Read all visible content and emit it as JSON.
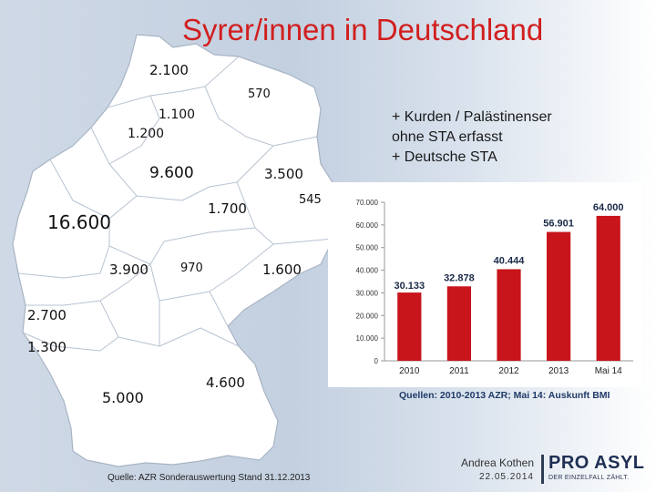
{
  "title": "Syrer/innen in Deutschland",
  "map": {
    "regions": [
      {
        "id": "schleswig-holstein",
        "value": "2.100"
      },
      {
        "id": "mecklenburg-vorpommern",
        "value": "570"
      },
      {
        "id": "hamburg",
        "value": "1.100"
      },
      {
        "id": "bremen",
        "value": "1.200"
      },
      {
        "id": "niedersachsen",
        "value": "9.600"
      },
      {
        "id": "berlin",
        "value": "3.500"
      },
      {
        "id": "brandenburg",
        "value": "545"
      },
      {
        "id": "sachsen-anhalt",
        "value": "1.700"
      },
      {
        "id": "nordrhein-westfalen",
        "value": "16.600"
      },
      {
        "id": "hessen",
        "value": "3.900"
      },
      {
        "id": "thueringen",
        "value": "970"
      },
      {
        "id": "sachsen",
        "value": "1.600"
      },
      {
        "id": "rheinland-pfalz",
        "value": "2.700"
      },
      {
        "id": "saarland",
        "value": "1.300"
      },
      {
        "id": "baden-wuerttemberg",
        "value": "5.000"
      },
      {
        "id": "bayern",
        "value": "4.600"
      }
    ],
    "source": "Quelle: AZR Sonderauswertung Stand 31.12.2013"
  },
  "note_lines": [
    "+ Kurden / Palästinenser",
    "ohne STA erfasst",
    "+ Deutsche STA"
  ],
  "chart_data": {
    "type": "bar",
    "categories": [
      "2010",
      "2011",
      "2012",
      "2013",
      "Mai 14"
    ],
    "values": [
      30133,
      32878,
      40444,
      56901,
      64000
    ],
    "value_labels": [
      "30.133",
      "32.878",
      "40.444",
      "56.901",
      "64.000"
    ],
    "yticks": [
      "0",
      "10.000",
      "20.000",
      "30.000",
      "40.000",
      "50.000",
      "60.000",
      "70.000"
    ],
    "ylim": [
      0,
      70000
    ],
    "grid": false,
    "bar_color": "#c8141b",
    "source": "Quellen: 2010-2013 AZR; Mai 14: Auskunft BMI"
  },
  "footer": {
    "author": "Andrea Kothen",
    "date": "22.05.2014",
    "brand": "PRO ASYL",
    "tagline": "DER EINZELFALL ZÄHLT."
  }
}
